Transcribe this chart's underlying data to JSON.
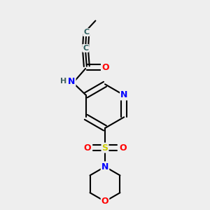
{
  "bg_color": "#eeeeee",
  "bond_color": "#000000",
  "atom_colors": {
    "N": "#0000ff",
    "O": "#ff0000",
    "S": "#cccc00",
    "C_dark": "#2f6060",
    "H": "#406060"
  },
  "font_size": 9,
  "line_width": 1.5,
  "double_sep": 0.012
}
